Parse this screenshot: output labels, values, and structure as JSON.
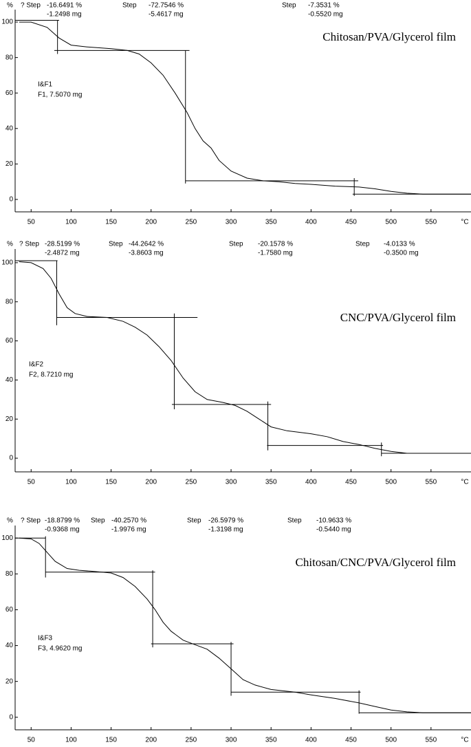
{
  "chart_data": [
    {
      "type": "line",
      "title": "Chitosan/PVA/Glycerol film",
      "y_label": "%",
      "x_label": "°C",
      "sample": [
        "I&F1",
        "F1, 7.5070 mg"
      ],
      "steps": [
        {
          "label": "? Step",
          "percent": "-16.6491 %",
          "mass": "-1.2498 mg"
        },
        {
          "label": "Step",
          "percent": "-72.7546 %",
          "mass": "-5.4617 mg"
        },
        {
          "label": "Step",
          "percent": "-7.3531 %",
          "mass": "-0.5520 mg"
        }
      ],
      "xlim": [
        30,
        600
      ],
      "ylim": [
        -7,
        107
      ],
      "xticks": [
        50,
        100,
        150,
        200,
        250,
        300,
        350,
        400,
        450,
        500,
        550
      ],
      "yticks": [
        0,
        20,
        40,
        60,
        80,
        100
      ],
      "color": "#000000",
      "x": [
        35,
        50,
        70,
        85,
        100,
        120,
        150,
        170,
        185,
        200,
        215,
        230,
        245,
        255,
        265,
        275,
        285,
        300,
        320,
        340,
        360,
        380,
        400,
        430,
        460,
        480,
        500,
        520,
        540,
        600
      ],
      "values": [
        100,
        100,
        97,
        91,
        87,
        86,
        85,
        84,
        82,
        77,
        70,
        60,
        49,
        40,
        33,
        29,
        22,
        16,
        12,
        10.5,
        10,
        9,
        8.5,
        7.5,
        7,
        6,
        4.5,
        3.5,
        3,
        3
      ],
      "tangent_lines": [
        [
          30,
          101,
          85,
          101
        ],
        [
          83,
          101,
          83,
          82
        ],
        [
          79,
          84,
          248,
          84
        ],
        [
          243,
          84,
          243,
          9
        ],
        [
          243,
          10.5,
          459,
          10.5
        ],
        [
          454,
          12,
          454,
          2
        ],
        [
          452,
          3,
          600,
          3
        ]
      ]
    },
    {
      "type": "line",
      "title": "CNC/PVA/Glycerol film",
      "y_label": "%",
      "x_label": "°C",
      "sample": [
        "I&F2",
        "F2, 8.7210 mg"
      ],
      "steps": [
        {
          "label": "? Step",
          "percent": "-28.5199 %",
          "mass": "-2.4872 mg"
        },
        {
          "label": "Step",
          "percent": "-44.2642 %",
          "mass": "-3.8603 mg"
        },
        {
          "label": "Step",
          "percent": "-20.1578 %",
          "mass": "-1.7580 mg"
        },
        {
          "label": "Step",
          "percent": "-4.0133 %",
          "mass": "-0.3500 mg"
        }
      ],
      "xlim": [
        30,
        600
      ],
      "ylim": [
        -7,
        107
      ],
      "xticks": [
        50,
        100,
        150,
        200,
        250,
        300,
        350,
        400,
        450,
        500,
        550
      ],
      "yticks": [
        0,
        20,
        40,
        60,
        80,
        100
      ],
      "color": "#000000",
      "x": [
        35,
        50,
        65,
        75,
        85,
        95,
        105,
        120,
        145,
        165,
        180,
        195,
        210,
        225,
        240,
        255,
        270,
        290,
        305,
        320,
        335,
        350,
        370,
        400,
        420,
        440,
        460,
        480,
        500,
        520,
        600
      ],
      "values": [
        100.5,
        100,
        97,
        92,
        84,
        77,
        74,
        72.5,
        72,
        70,
        67,
        63,
        57,
        50,
        41,
        34,
        30,
        28.5,
        27,
        24,
        20,
        16,
        14,
        12.5,
        11,
        8.5,
        7,
        5,
        3.5,
        2.5,
        2.5
      ],
      "tangent_lines": [
        [
          30,
          101,
          83,
          101
        ],
        [
          82,
          101,
          82,
          68
        ],
        [
          82,
          72,
          258,
          72
        ],
        [
          229,
          74,
          229,
          25
        ],
        [
          226,
          27.5,
          350,
          27.5
        ],
        [
          346,
          29,
          346,
          4
        ],
        [
          345,
          6.5,
          490,
          6.5
        ],
        [
          488,
          8,
          488,
          1
        ],
        [
          488,
          2.5,
          600,
          2.5
        ]
      ]
    },
    {
      "type": "line",
      "title": "Chitosan/CNC/PVA/Glycerol film",
      "y_label": "%",
      "x_label": "°C",
      "sample": [
        "I&F3",
        "F3, 4.9620 mg"
      ],
      "steps": [
        {
          "label": "? Step",
          "percent": "-18.8799 %",
          "mass": "-0.9368 mg"
        },
        {
          "label": "Step",
          "percent": "-40.2570 %",
          "mass": "-1.9976 mg"
        },
        {
          "label": "Step",
          "percent": "-26.5979 %",
          "mass": "-1.3198 mg"
        },
        {
          "label": "Step",
          "percent": "-10.9633 %",
          "mass": "-0.5440 mg"
        }
      ],
      "xlim": [
        30,
        600
      ],
      "ylim": [
        -7,
        107
      ],
      "xticks": [
        50,
        100,
        150,
        200,
        250,
        300,
        350,
        400,
        450,
        500,
        550
      ],
      "yticks": [
        0,
        20,
        40,
        60,
        80,
        100
      ],
      "color": "#000000",
      "x": [
        35,
        50,
        60,
        70,
        80,
        95,
        110,
        125,
        150,
        165,
        180,
        195,
        205,
        215,
        225,
        240,
        255,
        270,
        285,
        300,
        315,
        330,
        350,
        380,
        400,
        430,
        460,
        480,
        500,
        520,
        540,
        600
      ],
      "values": [
        100,
        99.5,
        97,
        92,
        87,
        83,
        82,
        81.5,
        80.5,
        78,
        73,
        66,
        60,
        53,
        48,
        43,
        40.5,
        38,
        33,
        27,
        21,
        18,
        15.5,
        14,
        12.5,
        10.5,
        8,
        6,
        4,
        3,
        2.5,
        2.5
      ],
      "tangent_lines": [
        [
          30,
          100,
          68,
          100
        ],
        [
          68,
          101,
          68,
          78
        ],
        [
          68,
          81,
          205,
          81
        ],
        [
          202,
          82,
          202,
          39
        ],
        [
          200,
          41,
          303,
          41
        ],
        [
          300,
          42,
          300,
          12
        ],
        [
          300,
          14,
          462,
          14
        ],
        [
          460,
          15,
          460,
          2
        ],
        [
          460,
          2.5,
          600,
          2.5
        ]
      ]
    }
  ]
}
